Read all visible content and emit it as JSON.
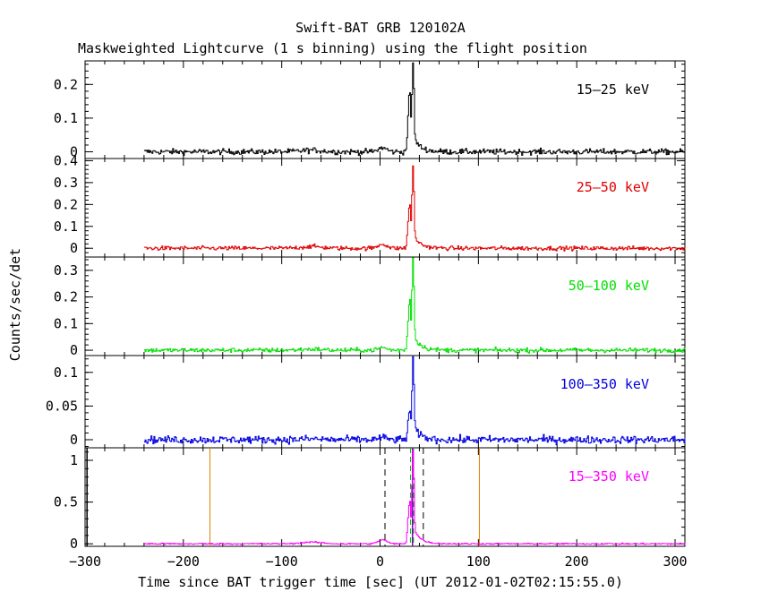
{
  "chart_data": {
    "type": "line",
    "title": "Swift-BAT GRB 120102A",
    "subtitle": "Maskweighted Lightcurve (1 s binning) using the flight position",
    "xlabel": "Time since BAT trigger time [sec] (UT 2012-01-02T02:15:55.0)",
    "ylabel": "Counts/sec/det",
    "xlim": [
      -300,
      310
    ],
    "xticks": [
      "−300",
      "−200",
      "−100",
      "0",
      "100",
      "200",
      "300"
    ],
    "data_start": -240,
    "bin_seconds": 1,
    "panels": [
      {
        "band": "15–25 keV",
        "color": "#000000",
        "ylim": [
          -0.02,
          0.27
        ],
        "yticks": [
          0,
          0.1,
          0.2
        ],
        "ytick_labels": [
          "0",
          "0.1",
          "0.2"
        ],
        "noise": 0.006,
        "precursor": 0.012,
        "peak": 0.255,
        "shoulder": 0.12
      },
      {
        "band": "25–50 keV",
        "color": "#e00000",
        "ylim": [
          -0.04,
          0.41
        ],
        "yticks": [
          0,
          0.1,
          0.2,
          0.3,
          0.4
        ],
        "ytick_labels": [
          "0",
          "0.1",
          "0.2",
          "0.3",
          "0.4"
        ],
        "noise": 0.007,
        "precursor": 0.02,
        "peak": 0.36,
        "shoulder": 0.14
      },
      {
        "band": "50–100 keV",
        "color": "#00e000",
        "ylim": [
          -0.02,
          0.35
        ],
        "yticks": [
          0,
          0.1,
          0.2,
          0.3
        ],
        "ytick_labels": [
          "0",
          "0.1",
          "0.2",
          "0.3"
        ],
        "noise": 0.006,
        "precursor": 0.01,
        "peak": 0.34,
        "shoulder": 0.13
      },
      {
        "band": "100–350 keV",
        "color": "#0000e0",
        "ylim": [
          -0.012,
          0.125
        ],
        "yticks": [
          0,
          0.05,
          0.1
        ],
        "ytick_labels": [
          "0",
          "0.05",
          "0.1"
        ],
        "noise": 0.004,
        "precursor": 0.003,
        "peak": 0.115,
        "shoulder": 0.03
      },
      {
        "band": "15–350 keV",
        "color": "#ff00ff",
        "ylim": [
          -0.03,
          1.15
        ],
        "yticks": [
          0,
          0.5,
          1
        ],
        "ytick_labels": [
          "0",
          "0.5",
          "1"
        ],
        "noise": 0.006,
        "precursor": 0.05,
        "peak": 1.1,
        "shoulder": 0.35
      }
    ],
    "markers": {
      "orange_lines": [
        -173,
        101
      ],
      "dashed_black_lines": [
        5,
        44
      ],
      "dashed_green_lines": [
        31,
        34
      ],
      "purple_line": 33,
      "black_line": -298
    }
  }
}
